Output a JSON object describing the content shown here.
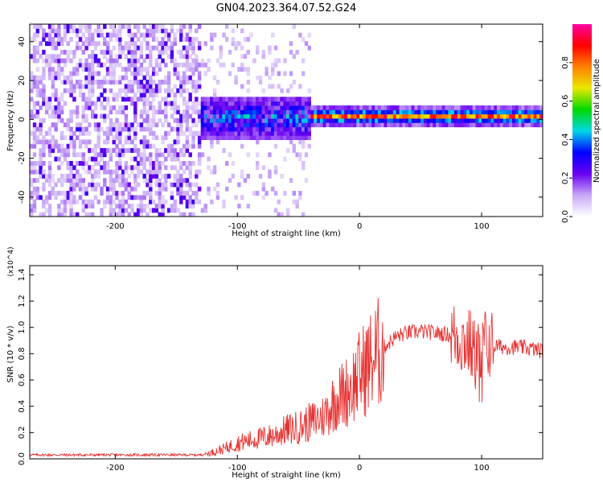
{
  "title": "GN04.2023.364.07.52.G24",
  "chart_data": [
    {
      "type": "heatmap",
      "xlabel": "Height of straight line (km)",
      "ylabel": "Frequency (Hz)",
      "xlim": [
        -270,
        150
      ],
      "ylim": [
        -50,
        49
      ],
      "xticks": [
        -200,
        -100,
        0,
        100
      ],
      "yticks": [
        -40,
        -20,
        0,
        20,
        40
      ],
      "grid": false,
      "colorbar": {
        "label": "Normalized spectral amplitude",
        "range": [
          0.0,
          1.0
        ],
        "ticks": [
          "0.0",
          "0.2",
          "0.4",
          "0.6",
          "0.8"
        ],
        "colormap": [
          "#ffffff",
          "#c8a8f8",
          "#6a00f0",
          "#0000ff",
          "#00d8e8",
          "#00d800",
          "#e8e800",
          "#ff8000",
          "#ff0000",
          "#ff00a0"
        ]
      },
      "regions": [
        {
          "x": [
            -270,
            -130
          ],
          "freq_band": [
            -50,
            49
          ],
          "amplitude": 0.15,
          "pattern": "broadband noise"
        },
        {
          "x": [
            -130,
            -40
          ],
          "freq_band": [
            -12,
            10
          ],
          "amplitude": 0.35,
          "pattern": "mixed"
        },
        {
          "x": [
            -40,
            150
          ],
          "freq_band": [
            -3,
            4
          ],
          "amplitude": 0.8,
          "pattern": "narrow carrier near 0 Hz"
        }
      ]
    },
    {
      "type": "line",
      "xlabel": "Height of straight line (km)",
      "ylabel": "SNR (10 * v/v)",
      "y_multiplier": "(x10^4)",
      "xlim": [
        -270,
        150
      ],
      "ylim": [
        0.0,
        1.47
      ],
      "xticks": [
        -200,
        -100,
        0,
        100
      ],
      "yticks": [
        "0.0",
        "0.2",
        "0.4",
        "0.6",
        "0.8",
        "1.0",
        "1.2",
        "1.4"
      ],
      "grid": false,
      "color": "#e83030",
      "series": [
        {
          "x": [
            -270,
            -240,
            -210,
            -180,
            -150,
            -130,
            -120,
            -110,
            -100,
            -90,
            -80,
            -70,
            -60,
            -50,
            -40,
            -30,
            -25,
            -20,
            -15,
            -10,
            -5,
            0,
            10,
            20,
            30,
            40,
            50,
            60,
            70,
            80,
            85,
            90,
            95,
            100,
            105,
            110,
            120,
            130,
            140,
            150
          ],
          "y": [
            0.03,
            0.03,
            0.03,
            0.03,
            0.03,
            0.03,
            0.05,
            0.08,
            0.12,
            0.14,
            0.16,
            0.18,
            0.22,
            0.24,
            0.28,
            0.32,
            0.38,
            0.45,
            0.48,
            0.52,
            0.57,
            0.64,
            0.75,
            0.85,
            0.93,
            0.96,
            0.97,
            0.96,
            0.95,
            0.93,
            0.9,
            0.88,
            0.78,
            0.86,
            0.88,
            0.86,
            0.85,
            0.85,
            0.84,
            0.82
          ]
        }
      ]
    }
  ]
}
